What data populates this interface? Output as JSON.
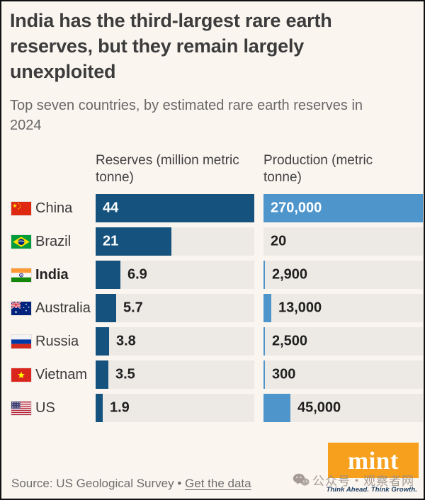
{
  "title": "India has the third-largest rare earth reserves, but they remain largely unexploited",
  "subtitle": "Top seven countries, by estimated rare earth reserves in 2024",
  "chart_data": {
    "type": "bar",
    "orientation": "horizontal",
    "title": "India has the third-largest rare earth reserves, but they remain largely unexploited",
    "subtitle": "Top seven countries, by estimated rare earth reserves in 2024",
    "categories": [
      "China",
      "Brazil",
      "India",
      "Australia",
      "Russia",
      "Vietnam",
      "US"
    ],
    "category_flags": [
      "china",
      "brazil",
      "india",
      "australia",
      "russia",
      "vietnam",
      "us"
    ],
    "emphasized_category": "India",
    "grid": false,
    "legend_position": "column-headers",
    "series": [
      {
        "name": "Reserves (million metric tonne)",
        "values": [
          44,
          21,
          6.9,
          5.7,
          3.8,
          3.5,
          1.9
        ],
        "labels": [
          "44",
          "21",
          "6.9",
          "5.7",
          "3.8",
          "3.5",
          "1.9"
        ],
        "axis_max": 44,
        "color": "#15537e",
        "labels_inside": [
          true,
          true,
          false,
          false,
          false,
          false,
          false
        ]
      },
      {
        "name": "Production (metric tonne)",
        "values": [
          270000,
          20,
          2900,
          13000,
          2500,
          300,
          45000
        ],
        "labels": [
          "270,000",
          "20",
          "2,900",
          "13,000",
          "2,500",
          "300",
          "45,000"
        ],
        "axis_max": 270000,
        "color": "#4e95cb",
        "labels_inside": [
          true,
          false,
          false,
          false,
          false,
          false,
          false
        ]
      }
    ]
  },
  "footer": {
    "source_label": "Source: US Geological Survey",
    "separator": "•",
    "link_label": "Get the data"
  },
  "branding": {
    "logo_text": "mint",
    "logo_bg_color": "#f7a01d",
    "tagline": "Think Ahead. Think Growth."
  },
  "watermark": {
    "icon": "wechat-icon",
    "text": "公众号・观察者网"
  },
  "colors": {
    "background": "#fbf5f0",
    "bar_track": "#edeae6",
    "reserves_bar": "#15537e",
    "production_bar": "#4e95cb",
    "title_text": "#3c3c3c",
    "subtitle_text": "#686868"
  }
}
